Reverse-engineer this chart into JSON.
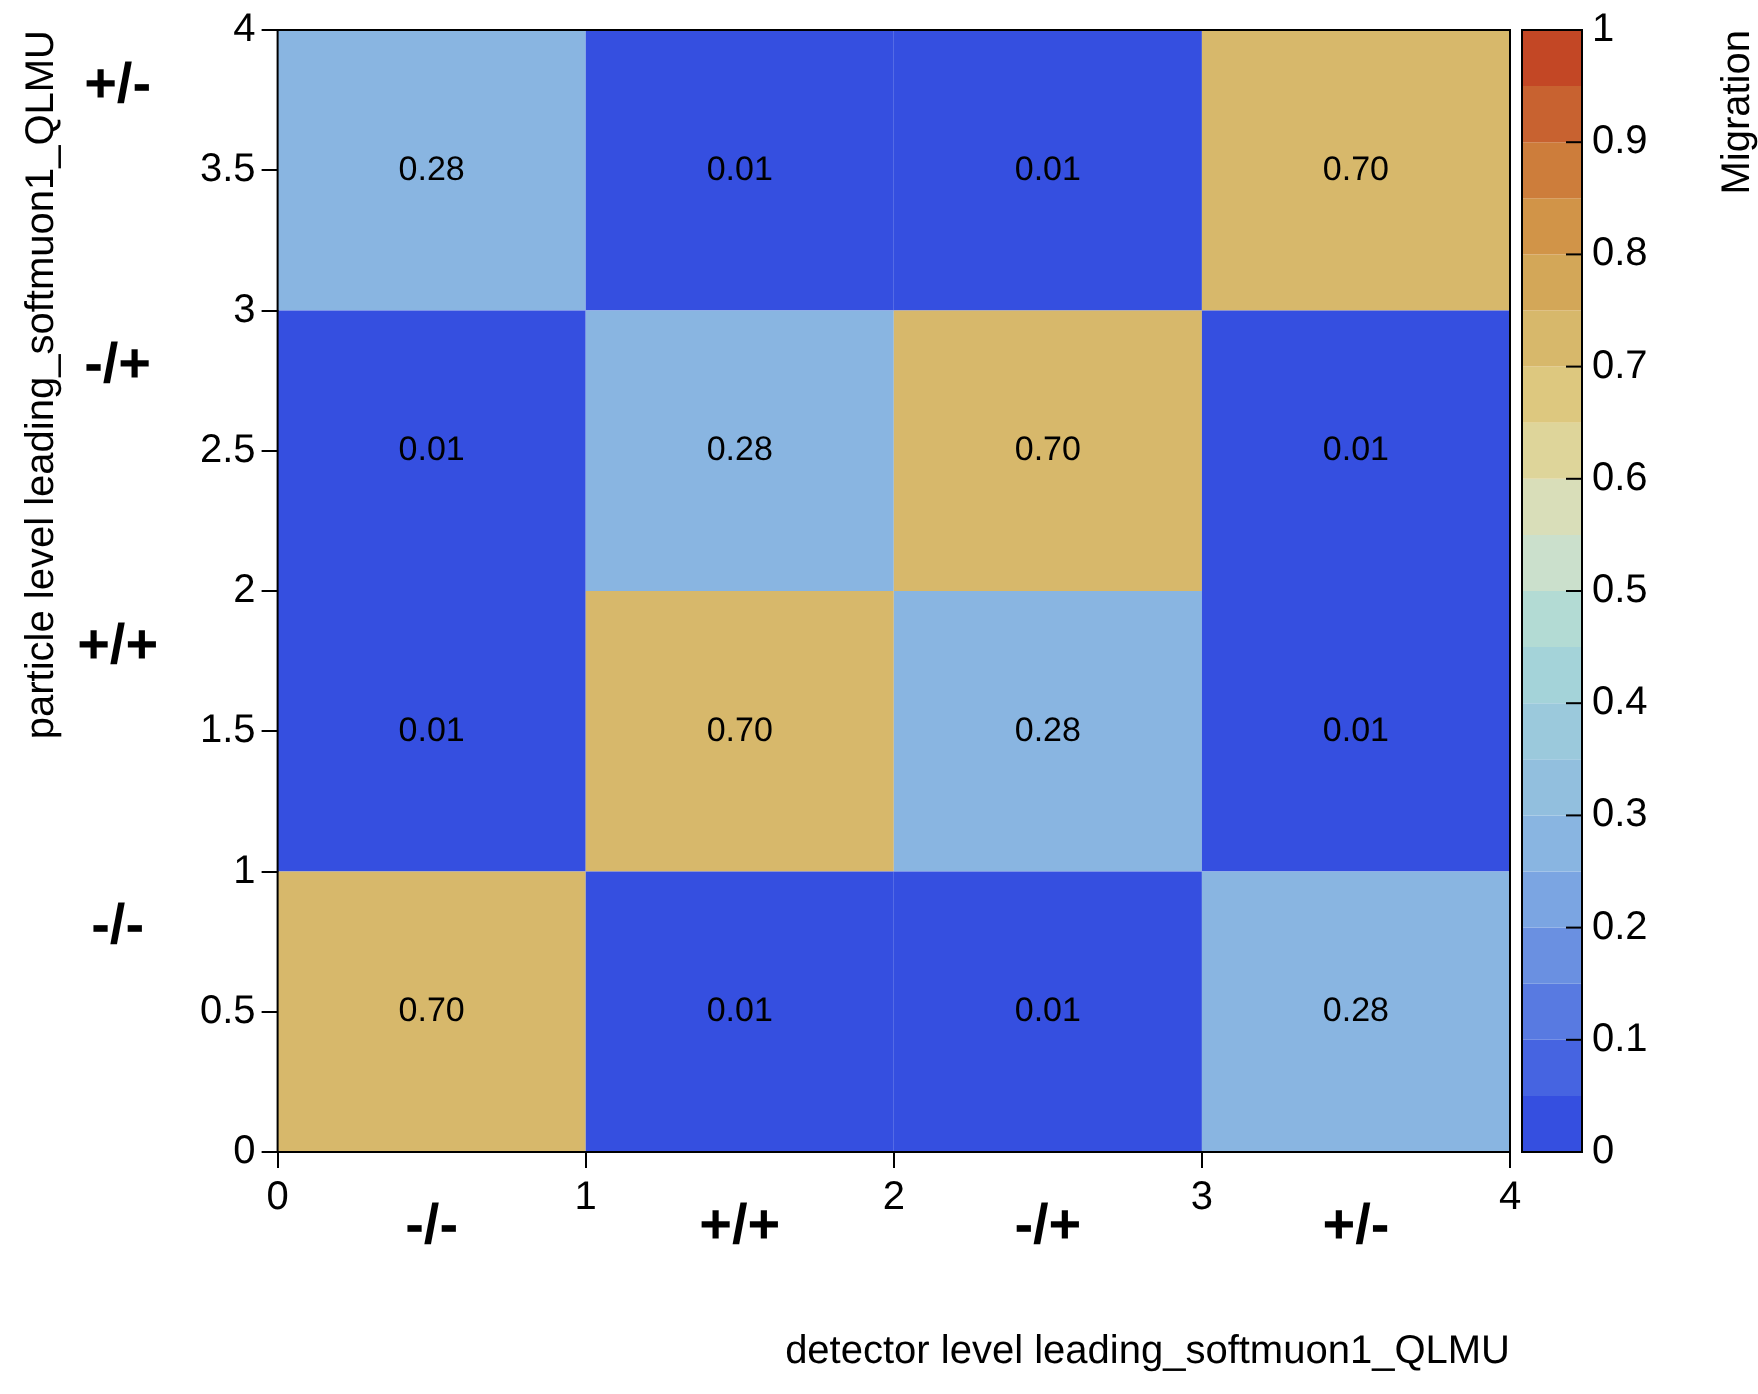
{
  "chart_data": {
    "type": "heatmap",
    "xlabel": "detector level leading_softmuon1_QLMU",
    "ylabel": "particle level leading_softmuon1_QLMU",
    "clabel": "Migration",
    "categories": [
      "-/-",
      "+/+",
      "-/+",
      "+/-"
    ],
    "y_categories": [
      "+/-",
      "-/+",
      "+/+",
      "-/-"
    ],
    "cells": [
      [
        0.28,
        0.01,
        0.01,
        0.7
      ],
      [
        0.01,
        0.28,
        0.7,
        0.01
      ],
      [
        0.01,
        0.7,
        0.28,
        0.01
      ],
      [
        0.7,
        0.01,
        0.01,
        0.28
      ]
    ],
    "cell_labels": [
      [
        "0.28",
        "0.01",
        "0.01",
        "0.70"
      ],
      [
        "0.01",
        "0.28",
        "0.70",
        "0.01"
      ],
      [
        "0.01",
        "0.70",
        "0.28",
        "0.01"
      ],
      [
        "0.70",
        "0.01",
        "0.01",
        "0.28"
      ]
    ],
    "annotations": [
      "0",
      "1",
      "2",
      "3",
      "4",
      "0",
      "0.5",
      "1",
      "1.5",
      "2",
      "2.5",
      "3",
      "3.5",
      "4"
    ],
    "clim": [
      0,
      1
    ],
    "cticks": [
      0,
      0.1,
      0.2,
      0.3,
      0.4,
      0.5,
      0.6,
      0.7,
      0.8,
      0.9,
      1
    ],
    "legend": false,
    "grid": false
  }
}
